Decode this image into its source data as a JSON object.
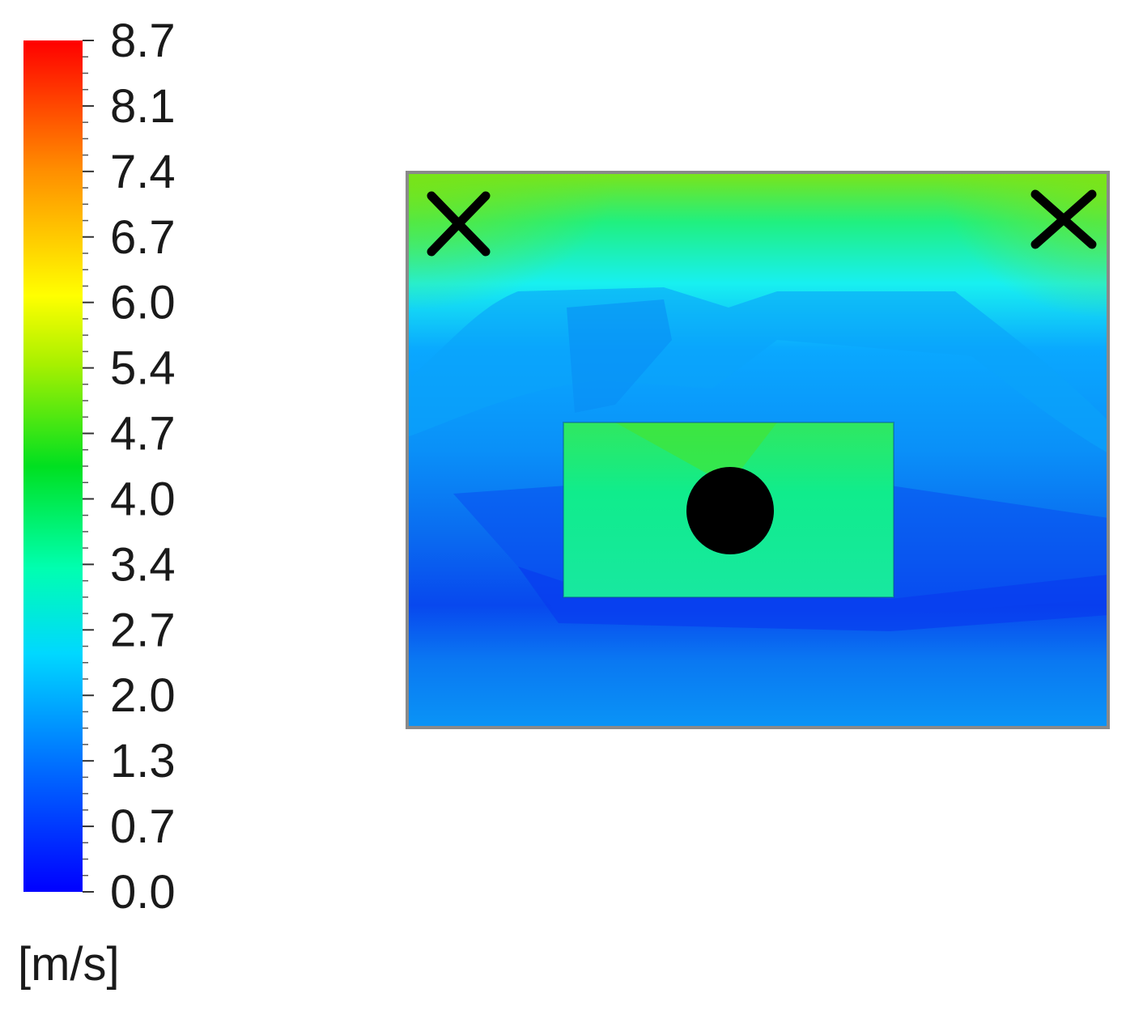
{
  "chart_data": {
    "type": "heatmap",
    "title": "",
    "xlabel": "",
    "ylabel": "",
    "colorbar": {
      "unit": "[m/s]",
      "ticks": [
        "0.0",
        "0.7",
        "1.3",
        "2.0",
        "2.7",
        "3.4",
        "4.0",
        "4.7",
        "5.4",
        "6.0",
        "6.7",
        "7.4",
        "8.1",
        "8.7"
      ],
      "range": [
        0.0,
        8.7
      ],
      "colormap": [
        "#0000ff",
        "#006fff",
        "#00ffff",
        "#00ff7f",
        "#00e000",
        "#ffff00",
        "#ff9000",
        "#ff0000"
      ]
    },
    "markers": [
      {
        "shape": "cross",
        "location": "top-left"
      },
      {
        "shape": "cross",
        "location": "top-right"
      },
      {
        "shape": "filled-circle",
        "location": "center"
      }
    ],
    "field_colors": {
      "top_band": "#7fe51a",
      "upper_mid": "#1ef0cf",
      "mid": "#0aa0ff",
      "low": "#0a6af0",
      "lowest": "#0a3cf0",
      "box": "#10e88a",
      "box_top": "#50e830"
    }
  }
}
